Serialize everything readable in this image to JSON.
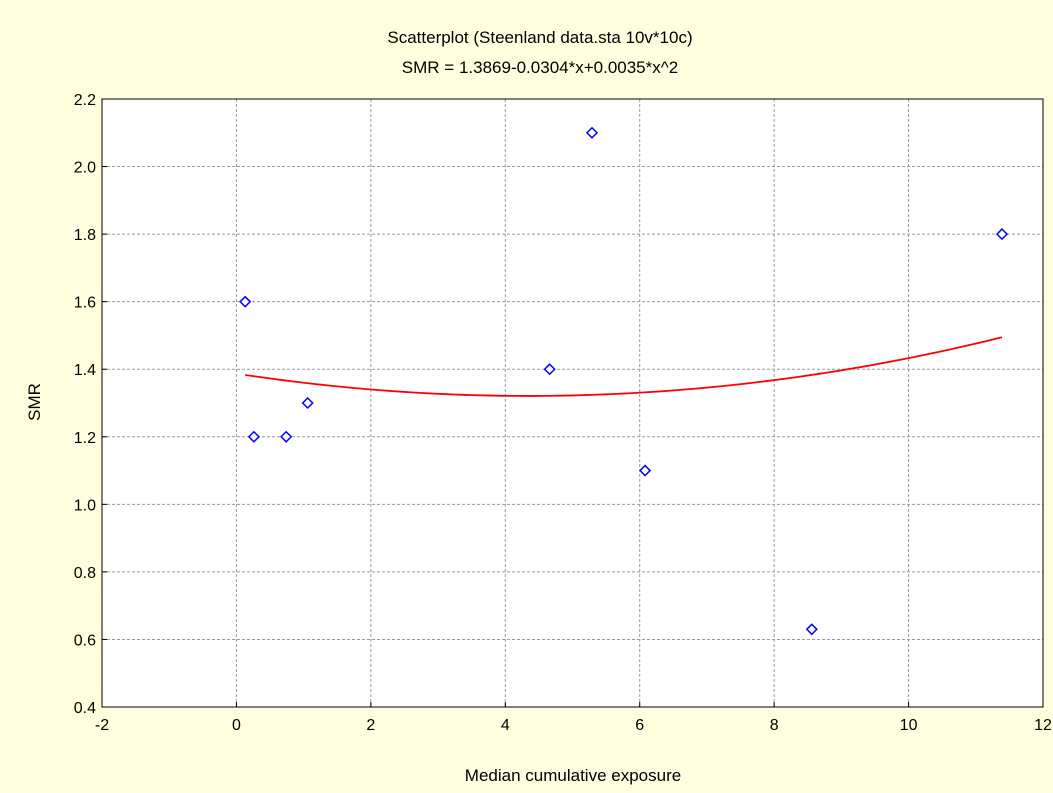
{
  "chart_data": {
    "type": "scatter",
    "title": "Scatterplot (Steenland data.sta 10v*10c)",
    "subtitle": "SMR = 1.3869-0.0304*x+0.0035*x^2",
    "xlabel": "Median cumulative exposure",
    "ylabel": "SMR",
    "xlim": [
      -2,
      12
    ],
    "ylim": [
      0.4,
      2.2
    ],
    "xticks": [
      -2,
      0,
      2,
      4,
      6,
      8,
      10,
      12
    ],
    "yticks": [
      0.4,
      0.6,
      0.8,
      1.0,
      1.2,
      1.4,
      1.6,
      1.8,
      2.0,
      2.2
    ],
    "grid": true,
    "points": [
      {
        "x": 0.13,
        "y": 1.6
      },
      {
        "x": 0.26,
        "y": 1.2
      },
      {
        "x": 0.74,
        "y": 1.2
      },
      {
        "x": 1.06,
        "y": 1.3
      },
      {
        "x": 4.66,
        "y": 1.4
      },
      {
        "x": 5.29,
        "y": 2.1
      },
      {
        "x": 6.08,
        "y": 1.1
      },
      {
        "x": 8.56,
        "y": 0.63
      },
      {
        "x": 11.39,
        "y": 1.8
      }
    ],
    "fit": {
      "coefficients": [
        1.3869,
        -0.0304,
        0.0035
      ],
      "x_range": [
        0.13,
        11.39
      ]
    },
    "colors": {
      "points": "#0000ff",
      "fit": "#ff0000",
      "plot_background": "#ffffff",
      "page_background": "#ffffe0"
    }
  }
}
